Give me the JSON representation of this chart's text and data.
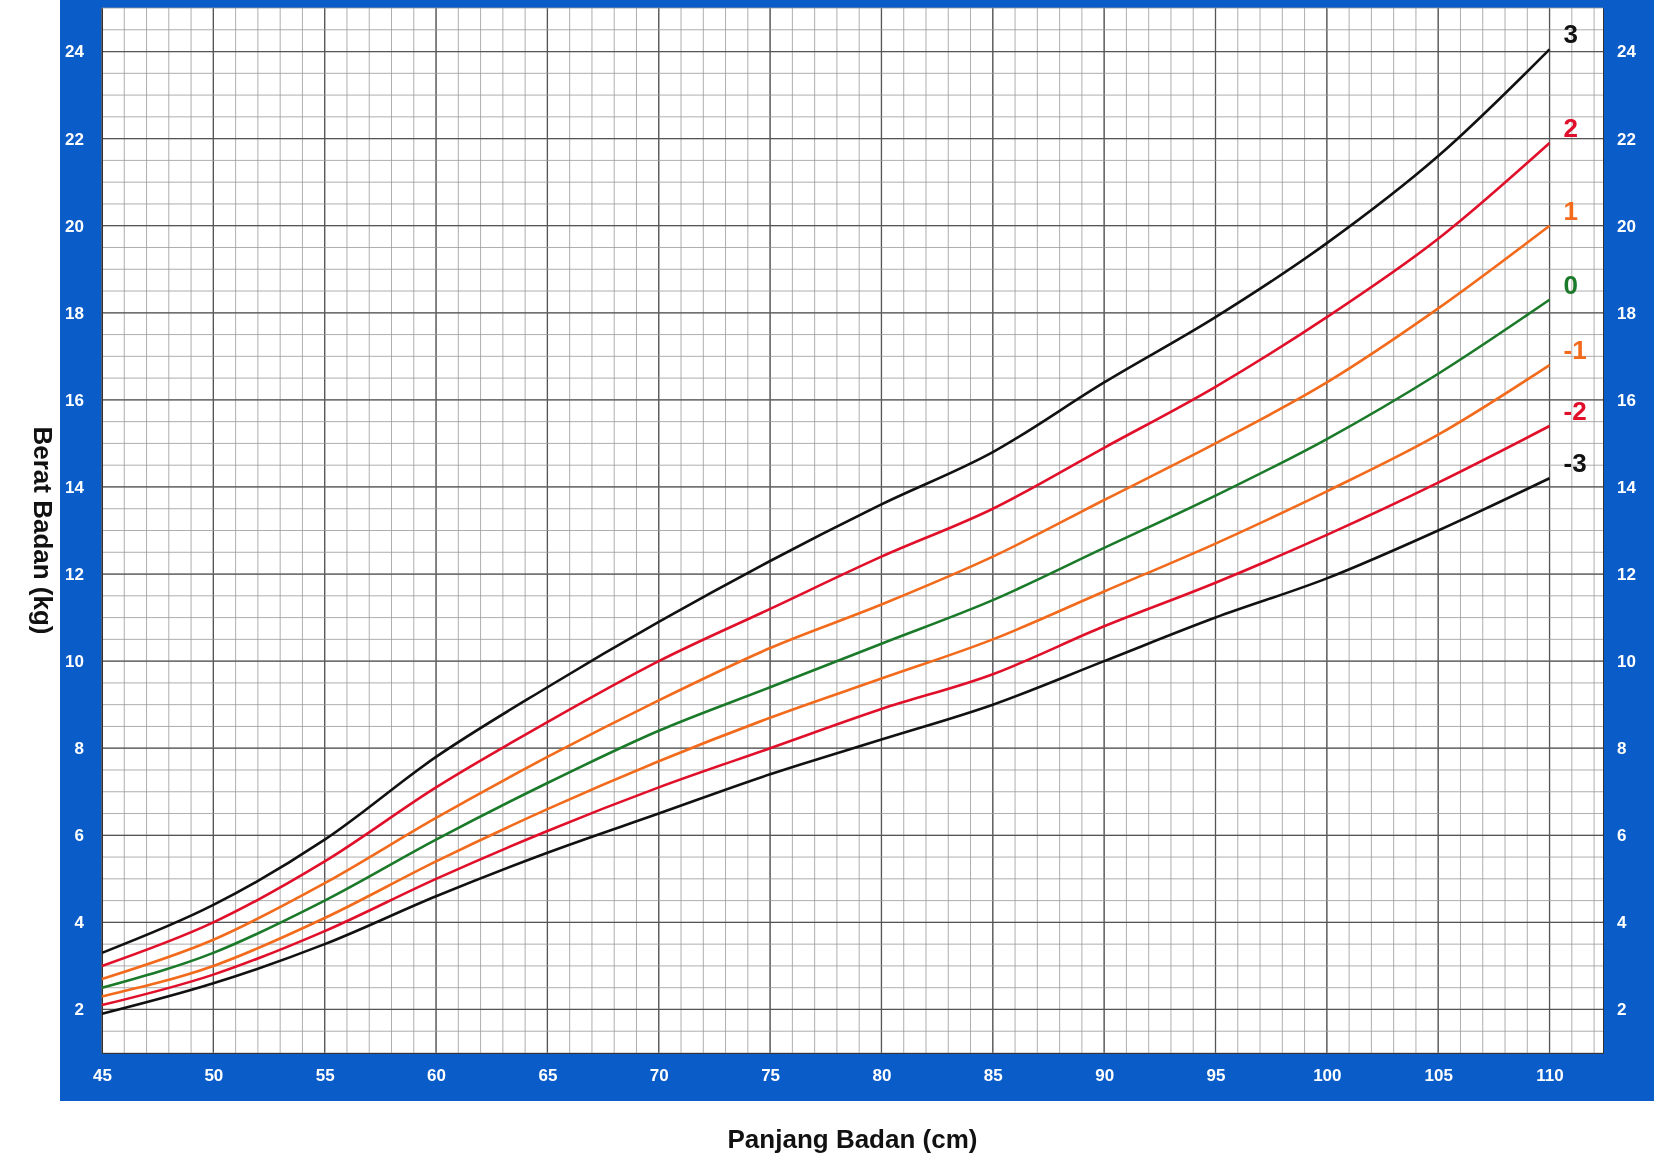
{
  "chart_data": {
    "type": "line",
    "xlabel": "Panjang Badan (cm)",
    "ylabel": "Berat Badan (kg)",
    "x": [
      45,
      50,
      55,
      60,
      65,
      70,
      75,
      80,
      85,
      90,
      95,
      100,
      105,
      110
    ],
    "xlim": [
      45,
      112.4
    ],
    "xticks": [
      45,
      50,
      55,
      60,
      65,
      70,
      75,
      80,
      85,
      90,
      95,
      100,
      105,
      110
    ],
    "ylim": [
      1,
      25
    ],
    "yticks": [
      2,
      4,
      6,
      8,
      10,
      12,
      14,
      16,
      18,
      20,
      22,
      24
    ],
    "y2lim": [
      1,
      25
    ],
    "y2ticks": [
      2,
      4,
      6,
      8,
      10,
      12,
      14,
      16,
      18,
      20,
      22,
      24
    ],
    "grid": true,
    "marker": "none",
    "line_style": "solid",
    "series": [
      {
        "name": "3",
        "color": "#111111",
        "values": [
          3.3,
          4.4,
          5.9,
          7.8,
          9.4,
          10.9,
          12.3,
          13.6,
          14.8,
          16.4,
          17.9,
          19.6,
          21.6,
          24.05
        ]
      },
      {
        "name": "2",
        "color": "#e0102a",
        "values": [
          3.0,
          4.0,
          5.4,
          7.1,
          8.6,
          10.0,
          11.2,
          12.4,
          13.5,
          14.9,
          16.3,
          17.9,
          19.7,
          21.9
        ]
      },
      {
        "name": "1",
        "color": "#f26a1b",
        "values": [
          2.7,
          3.6,
          4.9,
          6.4,
          7.8,
          9.1,
          10.3,
          11.3,
          12.4,
          13.7,
          15.0,
          16.4,
          18.1,
          20.0
        ]
      },
      {
        "name": "0",
        "color": "#1a7a2a",
        "values": [
          2.5,
          3.3,
          4.5,
          5.9,
          7.2,
          8.4,
          9.4,
          10.4,
          11.4,
          12.6,
          13.8,
          15.1,
          16.6,
          18.3
        ]
      },
      {
        "name": "-1",
        "color": "#f26a1b",
        "values": [
          2.3,
          3.0,
          4.1,
          5.4,
          6.6,
          7.7,
          8.7,
          9.6,
          10.5,
          11.6,
          12.7,
          13.9,
          15.2,
          16.8
        ]
      },
      {
        "name": "-2",
        "color": "#e0102a",
        "values": [
          2.1,
          2.8,
          3.8,
          5.0,
          6.1,
          7.1,
          8.0,
          8.9,
          9.7,
          10.8,
          11.8,
          12.9,
          14.1,
          15.4
        ]
      },
      {
        "name": "-3",
        "color": "#111111",
        "values": [
          1.9,
          2.6,
          3.5,
          4.6,
          5.6,
          6.5,
          7.4,
          8.2,
          9.0,
          10.0,
          11.0,
          11.9,
          13.0,
          14.2
        ]
      }
    ]
  }
}
